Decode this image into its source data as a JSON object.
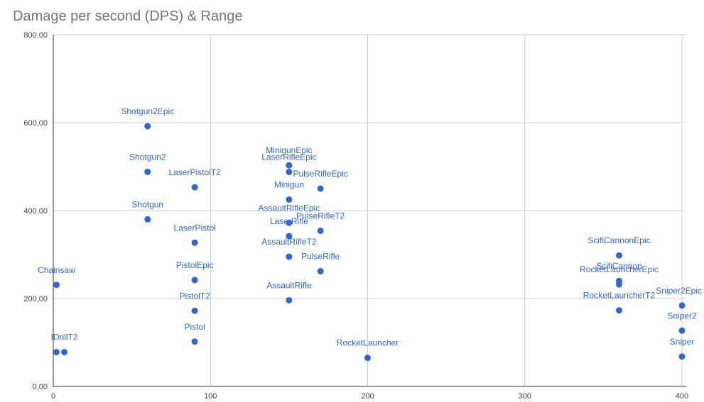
{
  "chart_data": {
    "type": "scatter",
    "title": "Damage per second (DPS) & Range",
    "xlabel": "",
    "ylabel": "",
    "xlim": [
      0,
      400
    ],
    "ylim": [
      0,
      800
    ],
    "x_ticks": [
      0,
      100,
      200,
      300,
      400
    ],
    "y_ticks": [
      0,
      200,
      400,
      600,
      800
    ],
    "y_tick_labels": [
      "0,00",
      "200,00",
      "400,00",
      "600,00",
      "800,00"
    ],
    "grid": true,
    "legend": "none",
    "point_color": "#3366cc",
    "points": [
      {
        "x": 2,
        "y": 231,
        "label": "Chainsaw"
      },
      {
        "x": 2,
        "y": 78,
        "label": ""
      },
      {
        "x": 7,
        "y": 78,
        "label": "IDrillT2"
      },
      {
        "x": 60,
        "y": 592,
        "label": "Shotgun2Epic"
      },
      {
        "x": 60,
        "y": 488,
        "label": "Shotgun2"
      },
      {
        "x": 60,
        "y": 380,
        "label": "Shotgun"
      },
      {
        "x": 90,
        "y": 453,
        "label": "LaserPistolT2"
      },
      {
        "x": 90,
        "y": 327,
        "label": "LaserPistol"
      },
      {
        "x": 90,
        "y": 242,
        "label": "PistolEpic"
      },
      {
        "x": 90,
        "y": 172,
        "label": "PistolT2"
      },
      {
        "x": 90,
        "y": 102,
        "label": "Pistol"
      },
      {
        "x": 150,
        "y": 503,
        "label": "MinigunEpic"
      },
      {
        "x": 150,
        "y": 488,
        "label": "LaserRifleEpic"
      },
      {
        "x": 150,
        "y": 425,
        "label": "Minigun"
      },
      {
        "x": 150,
        "y": 372,
        "label": "AssaultRifleEpic"
      },
      {
        "x": 150,
        "y": 342,
        "label": "LaserRifle"
      },
      {
        "x": 150,
        "y": 295,
        "label": "AssaultRifleT2"
      },
      {
        "x": 150,
        "y": 196,
        "label": "AssaultRifle"
      },
      {
        "x": 170,
        "y": 450,
        "label": "PulseRifleEpic"
      },
      {
        "x": 170,
        "y": 354,
        "label": "PulseRifleT2"
      },
      {
        "x": 170,
        "y": 262,
        "label": "PulseRifle"
      },
      {
        "x": 200,
        "y": 65,
        "label": "RocketLauncher"
      },
      {
        "x": 360,
        "y": 298,
        "label": "ScifiCannonEpic"
      },
      {
        "x": 360,
        "y": 240,
        "label": "ScifiCannon"
      },
      {
        "x": 360,
        "y": 232,
        "label": "RocketLauncherEpic"
      },
      {
        "x": 360,
        "y": 173,
        "label": "RocketLauncherT2"
      },
      {
        "x": 400,
        "y": 184,
        "label": "Sniper2Epic"
      },
      {
        "x": 400,
        "y": 127,
        "label": "Sniper2"
      },
      {
        "x": 400,
        "y": 68,
        "label": "Sniper"
      }
    ]
  }
}
